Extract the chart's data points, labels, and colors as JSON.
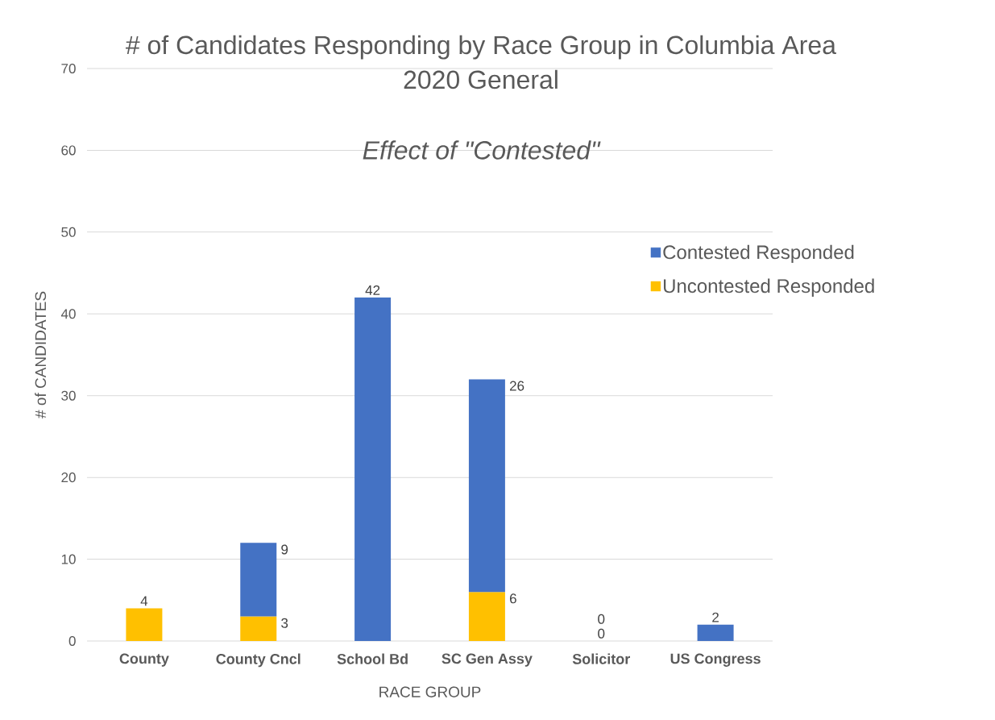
{
  "chart_data": {
    "type": "bar",
    "title": "# of Candidates Responding by Race Group in Columbia Area 2020 General",
    "subtitle": "Effect of \"Contested\"",
    "xlabel": "RACE GROUP",
    "ylabel": "# of CANDIDATES",
    "categories": [
      "County",
      "County Cncl",
      "School Bd",
      "SC Gen Assy",
      "Solicitor",
      "US Congress"
    ],
    "series": [
      {
        "name": "Uncontested Responded",
        "color": "#ffc000",
        "values": [
          4,
          3,
          null,
          6,
          0,
          null
        ]
      },
      {
        "name": "Contested Responded",
        "color": "#4472c4",
        "values": [
          null,
          9,
          42,
          26,
          0,
          2
        ]
      }
    ],
    "stacked": true,
    "data_labels": true,
    "ylim": [
      0,
      70
    ],
    "yticks": [
      0,
      10,
      20,
      30,
      40,
      50,
      60,
      70
    ],
    "grid": "y",
    "legend": "right"
  }
}
